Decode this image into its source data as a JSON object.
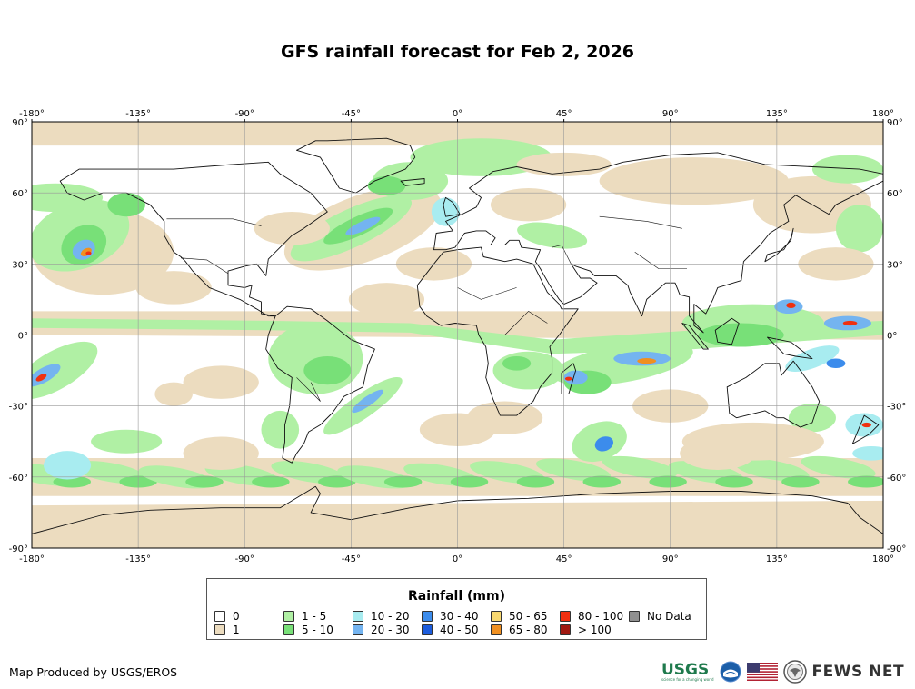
{
  "title": "GFS rainfall forecast for Feb 2, 2026",
  "map": {
    "lon_ticks": [
      "-180°",
      "-135°",
      "-90°",
      "-45°",
      "0°",
      "45°",
      "90°",
      "135°",
      "180°"
    ],
    "lat_ticks": [
      "90°",
      "60°",
      "30°",
      "0°",
      "-30°",
      "-60°",
      "-90°"
    ],
    "colors": {
      "r0": "#ffffff",
      "r1": "#ecdcbf",
      "r1_5": "#b0f0a4",
      "r5_10": "#78e078",
      "r10_20": "#a8ecf0",
      "r20_30": "#74b4f0",
      "r30_40": "#3c8cec",
      "r40_50": "#1c5cdc",
      "r50_65": "#f8d870",
      "r65_80": "#f09020",
      "r80_100": "#f03010",
      "r100": "#a01810",
      "nodata": "#909090"
    }
  },
  "legend": {
    "title": "Rainfall (mm)",
    "items": [
      {
        "label": "0",
        "color": "#ffffff"
      },
      {
        "label": "1",
        "color": "#ecdcbf"
      },
      {
        "label": "1 - 5",
        "color": "#b0f0a4"
      },
      {
        "label": "5 - 10",
        "color": "#78e078"
      },
      {
        "label": "10 - 20",
        "color": "#a8ecf0"
      },
      {
        "label": "20 - 30",
        "color": "#74b4f0"
      },
      {
        "label": "30 - 40",
        "color": "#3c8cec"
      },
      {
        "label": "40 - 50",
        "color": "#1c5cdc"
      },
      {
        "label": "50 - 65",
        "color": "#f8d870"
      },
      {
        "label": "65 - 80",
        "color": "#f09020"
      },
      {
        "label": "80 - 100",
        "color": "#f03010"
      },
      {
        "label": "> 100",
        "color": "#a01810"
      },
      {
        "label": "No Data",
        "color": "#909090"
      }
    ]
  },
  "credit": "Map Produced by USGS/EROS",
  "logos": {
    "usgs": "USGS",
    "usgs_tagline": "science for a changing world",
    "noaa": "noaa-logo",
    "flag": "us-flag",
    "seal": "state-department-seal",
    "fews": "FEWS NET"
  }
}
